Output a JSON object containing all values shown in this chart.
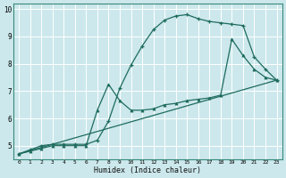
{
  "xlabel": "Humidex (Indice chaleur)",
  "bg_color": "#cce8ec",
  "grid_color": "#ffffff",
  "line_color": "#1e6b5e",
  "xlim": [
    -0.5,
    23.5
  ],
  "ylim": [
    4.5,
    10.2
  ],
  "xticks": [
    0,
    1,
    2,
    3,
    4,
    5,
    6,
    7,
    8,
    9,
    10,
    11,
    12,
    13,
    14,
    15,
    16,
    17,
    18,
    19,
    20,
    21,
    22,
    23
  ],
  "yticks": [
    5,
    6,
    7,
    8,
    9,
    10
  ],
  "curve1_x": [
    0,
    1,
    2,
    3,
    4,
    5,
    6,
    7,
    8,
    9,
    10,
    11,
    12,
    13,
    14,
    15,
    16,
    17,
    18,
    19,
    20,
    21,
    22,
    23
  ],
  "curve1_y": [
    4.7,
    4.85,
    5.0,
    5.05,
    5.05,
    5.05,
    5.05,
    5.2,
    5.9,
    7.1,
    7.95,
    8.65,
    9.25,
    9.6,
    9.75,
    9.8,
    9.65,
    9.55,
    9.5,
    9.45,
    9.4,
    8.25,
    7.8,
    7.4
  ],
  "curve2_x": [
    0,
    1,
    2,
    3,
    4,
    5,
    6,
    7,
    8,
    9,
    10,
    11,
    12,
    13,
    14,
    15,
    16,
    17,
    18,
    19,
    20,
    21,
    22,
    23
  ],
  "curve2_y": [
    4.7,
    4.8,
    4.9,
    5.0,
    5.0,
    5.0,
    5.0,
    6.3,
    7.25,
    6.65,
    6.3,
    6.3,
    6.35,
    6.5,
    6.55,
    6.65,
    6.7,
    6.75,
    6.85,
    8.9,
    8.3,
    7.8,
    7.5,
    7.4
  ],
  "curve3_x": [
    0,
    23
  ],
  "curve3_y": [
    4.7,
    7.4
  ]
}
